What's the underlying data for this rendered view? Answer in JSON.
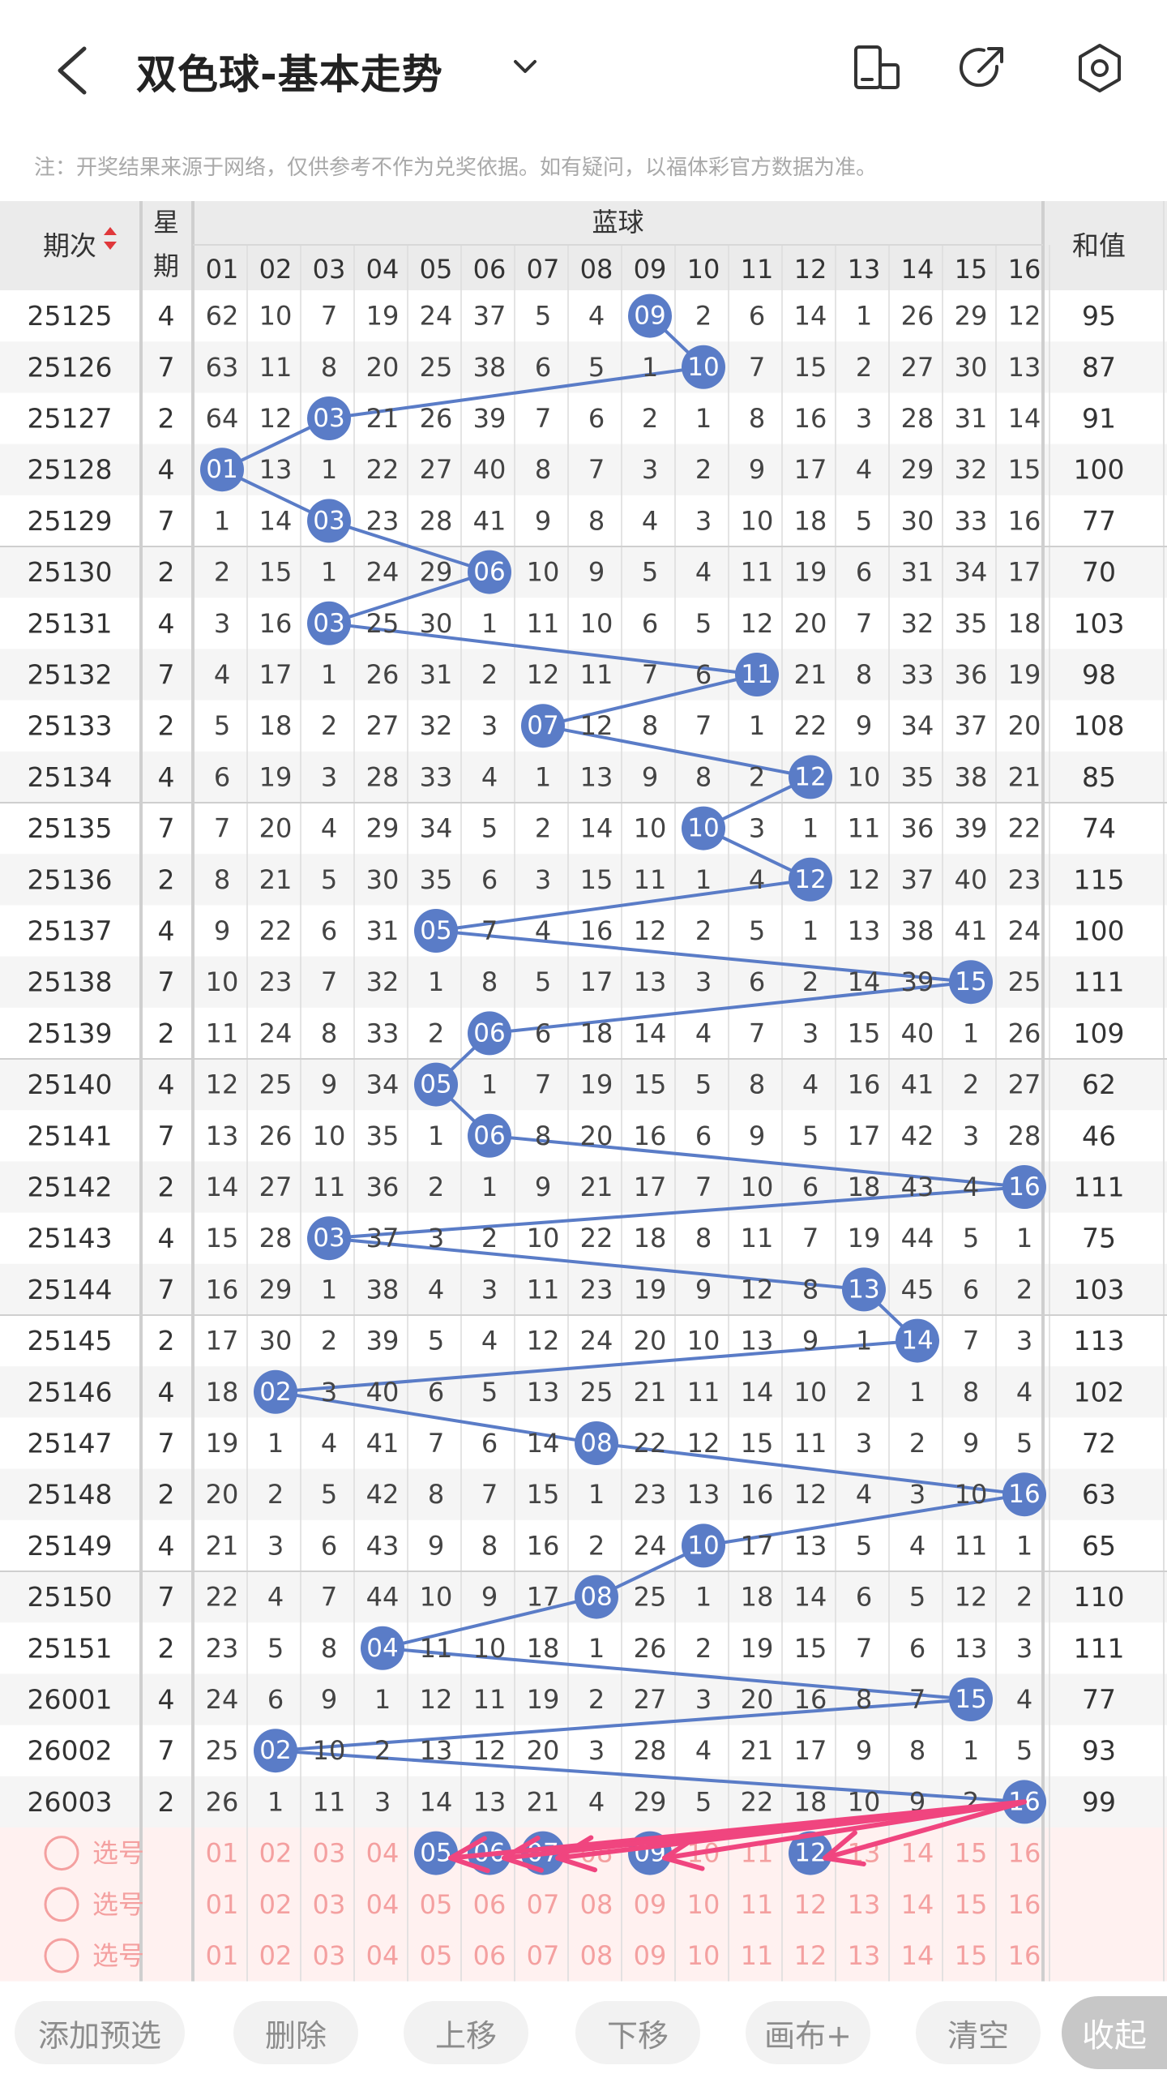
{
  "header": {
    "title": "双色球-基本走势",
    "note": "注：开奖结果来源于网络，仅供参考不作为兑奖依据。如有疑问，以福体彩官方数据为准。"
  },
  "table": {
    "col_period": "期次",
    "col_week_a": "星",
    "col_week_b": "期",
    "col_blue": "蓝球",
    "col_sum": "和值",
    "numbers": [
      "01",
      "02",
      "03",
      "04",
      "05",
      "06",
      "07",
      "08",
      "09",
      "10",
      "11",
      "12",
      "13",
      "14",
      "15",
      "16"
    ],
    "rows": [
      {
        "p": "25125",
        "w": "4",
        "c": [
          62,
          10,
          7,
          19,
          24,
          37,
          5,
          4,
          "09",
          2,
          6,
          14,
          1,
          26,
          29,
          12
        ],
        "s": "95"
      },
      {
        "p": "25126",
        "w": "7",
        "c": [
          63,
          11,
          8,
          20,
          25,
          38,
          6,
          5,
          1,
          "10",
          7,
          15,
          2,
          27,
          30,
          13
        ],
        "s": "87"
      },
      {
        "p": "25127",
        "w": "2",
        "c": [
          64,
          12,
          "03",
          21,
          26,
          39,
          7,
          6,
          2,
          1,
          8,
          16,
          3,
          28,
          31,
          14
        ],
        "s": "91"
      },
      {
        "p": "25128",
        "w": "4",
        "c": [
          "01",
          13,
          1,
          22,
          27,
          40,
          8,
          7,
          3,
          2,
          9,
          17,
          4,
          29,
          32,
          15
        ],
        "s": "100"
      },
      {
        "p": "25129",
        "w": "7",
        "c": [
          1,
          14,
          "03",
          23,
          28,
          41,
          9,
          8,
          4,
          3,
          10,
          18,
          5,
          30,
          33,
          16
        ],
        "s": "77"
      },
      {
        "p": "25130",
        "w": "2",
        "c": [
          2,
          15,
          1,
          24,
          29,
          "06",
          10,
          9,
          5,
          4,
          11,
          19,
          6,
          31,
          34,
          17
        ],
        "s": "70"
      },
      {
        "p": "25131",
        "w": "4",
        "c": [
          3,
          16,
          "03",
          25,
          30,
          1,
          11,
          10,
          6,
          5,
          12,
          20,
          7,
          32,
          35,
          18
        ],
        "s": "103"
      },
      {
        "p": "25132",
        "w": "7",
        "c": [
          4,
          17,
          1,
          26,
          31,
          2,
          12,
          11,
          7,
          6,
          "11",
          21,
          8,
          33,
          36,
          19
        ],
        "s": "98"
      },
      {
        "p": "25133",
        "w": "2",
        "c": [
          5,
          18,
          2,
          27,
          32,
          3,
          "07",
          12,
          8,
          7,
          1,
          22,
          9,
          34,
          37,
          20
        ],
        "s": "108"
      },
      {
        "p": "25134",
        "w": "4",
        "c": [
          6,
          19,
          3,
          28,
          33,
          4,
          1,
          13,
          9,
          8,
          2,
          "12",
          10,
          35,
          38,
          21
        ],
        "s": "85"
      },
      {
        "p": "25135",
        "w": "7",
        "c": [
          7,
          20,
          4,
          29,
          34,
          5,
          2,
          14,
          10,
          "10",
          3,
          1,
          11,
          36,
          39,
          22
        ],
        "s": "74"
      },
      {
        "p": "25136",
        "w": "2",
        "c": [
          8,
          21,
          5,
          30,
          35,
          6,
          3,
          15,
          11,
          1,
          4,
          "12",
          12,
          37,
          40,
          23
        ],
        "s": "115"
      },
      {
        "p": "25137",
        "w": "4",
        "c": [
          9,
          22,
          6,
          31,
          "05",
          7,
          4,
          16,
          12,
          2,
          5,
          1,
          13,
          38,
          41,
          24
        ],
        "s": "100"
      },
      {
        "p": "25138",
        "w": "7",
        "c": [
          10,
          23,
          7,
          32,
          1,
          8,
          5,
          17,
          13,
          3,
          6,
          2,
          14,
          39,
          "15",
          25
        ],
        "s": "111"
      },
      {
        "p": "25139",
        "w": "2",
        "c": [
          11,
          24,
          8,
          33,
          2,
          "06",
          6,
          18,
          14,
          4,
          7,
          3,
          15,
          40,
          1,
          26
        ],
        "s": "109"
      },
      {
        "p": "25140",
        "w": "4",
        "c": [
          12,
          25,
          9,
          34,
          "05",
          1,
          7,
          19,
          15,
          5,
          8,
          4,
          16,
          41,
          2,
          27
        ],
        "s": "62"
      },
      {
        "p": "25141",
        "w": "7",
        "c": [
          13,
          26,
          10,
          35,
          1,
          "06",
          8,
          20,
          16,
          6,
          9,
          5,
          17,
          42,
          3,
          28
        ],
        "s": "46"
      },
      {
        "p": "25142",
        "w": "2",
        "c": [
          14,
          27,
          11,
          36,
          2,
          1,
          9,
          21,
          17,
          7,
          10,
          6,
          18,
          43,
          4,
          "16"
        ],
        "s": "111"
      },
      {
        "p": "25143",
        "w": "4",
        "c": [
          15,
          28,
          "03",
          37,
          3,
          2,
          10,
          22,
          18,
          8,
          11,
          7,
          19,
          44,
          5,
          1
        ],
        "s": "75"
      },
      {
        "p": "25144",
        "w": "7",
        "c": [
          16,
          29,
          1,
          38,
          4,
          3,
          11,
          23,
          19,
          9,
          12,
          8,
          "13",
          45,
          6,
          2
        ],
        "s": "103"
      },
      {
        "p": "25145",
        "w": "2",
        "c": [
          17,
          30,
          2,
          39,
          5,
          4,
          12,
          24,
          20,
          10,
          13,
          9,
          1,
          "14",
          7,
          3
        ],
        "s": "113"
      },
      {
        "p": "25146",
        "w": "4",
        "c": [
          18,
          "02",
          3,
          40,
          6,
          5,
          13,
          25,
          21,
          11,
          14,
          10,
          2,
          1,
          8,
          4
        ],
        "s": "102"
      },
      {
        "p": "25147",
        "w": "7",
        "c": [
          19,
          1,
          4,
          41,
          7,
          6,
          14,
          "08",
          22,
          12,
          15,
          11,
          3,
          2,
          9,
          5
        ],
        "s": "72"
      },
      {
        "p": "25148",
        "w": "2",
        "c": [
          20,
          2,
          5,
          42,
          8,
          7,
          15,
          1,
          23,
          13,
          16,
          12,
          4,
          3,
          10,
          "16"
        ],
        "s": "63"
      },
      {
        "p": "25149",
        "w": "4",
        "c": [
          21,
          3,
          6,
          43,
          9,
          8,
          16,
          2,
          24,
          "10",
          17,
          13,
          5,
          4,
          11,
          1
        ],
        "s": "65"
      },
      {
        "p": "25150",
        "w": "7",
        "c": [
          22,
          4,
          7,
          44,
          10,
          9,
          17,
          "08",
          25,
          1,
          18,
          14,
          6,
          5,
          12,
          2
        ],
        "s": "110"
      },
      {
        "p": "25151",
        "w": "2",
        "c": [
          23,
          5,
          8,
          "04",
          11,
          10,
          18,
          1,
          26,
          2,
          19,
          15,
          7,
          6,
          13,
          3
        ],
        "s": "111"
      },
      {
        "p": "26001",
        "w": "4",
        "c": [
          24,
          6,
          9,
          1,
          12,
          11,
          19,
          2,
          27,
          3,
          20,
          16,
          8,
          7,
          "15",
          4
        ],
        "s": "77"
      },
      {
        "p": "26002",
        "w": "7",
        "c": [
          25,
          "02",
          10,
          2,
          13,
          12,
          20,
          3,
          28,
          4,
          21,
          17,
          9,
          8,
          1,
          5
        ],
        "s": "93"
      },
      {
        "p": "26003",
        "w": "2",
        "c": [
          26,
          1,
          11,
          3,
          14,
          13,
          21,
          4,
          29,
          5,
          22,
          18,
          10,
          9,
          2,
          "16"
        ],
        "s": "99"
      }
    ]
  },
  "select_rows": [
    {
      "label": "选号",
      "picked": [
        "05",
        "06",
        "07",
        "09",
        "12"
      ]
    },
    {
      "label": "选号",
      "picked": []
    },
    {
      "label": "选号",
      "picked": []
    }
  ],
  "buttons": {
    "add": "添加预选",
    "delete": "删除",
    "up": "上移",
    "down": "下移",
    "canvas": "画布+",
    "clear": "清空",
    "collapse": "收起"
  },
  "colors": {
    "blue_ball": "#5a7cc7",
    "line": "#5a7cc7",
    "pick_text": "#f4a0a0",
    "pick_bg": "#fff1f0",
    "arrow": "#f0457f",
    "stripe": "#f5f5f5",
    "header_bg": "#ebebeb"
  }
}
